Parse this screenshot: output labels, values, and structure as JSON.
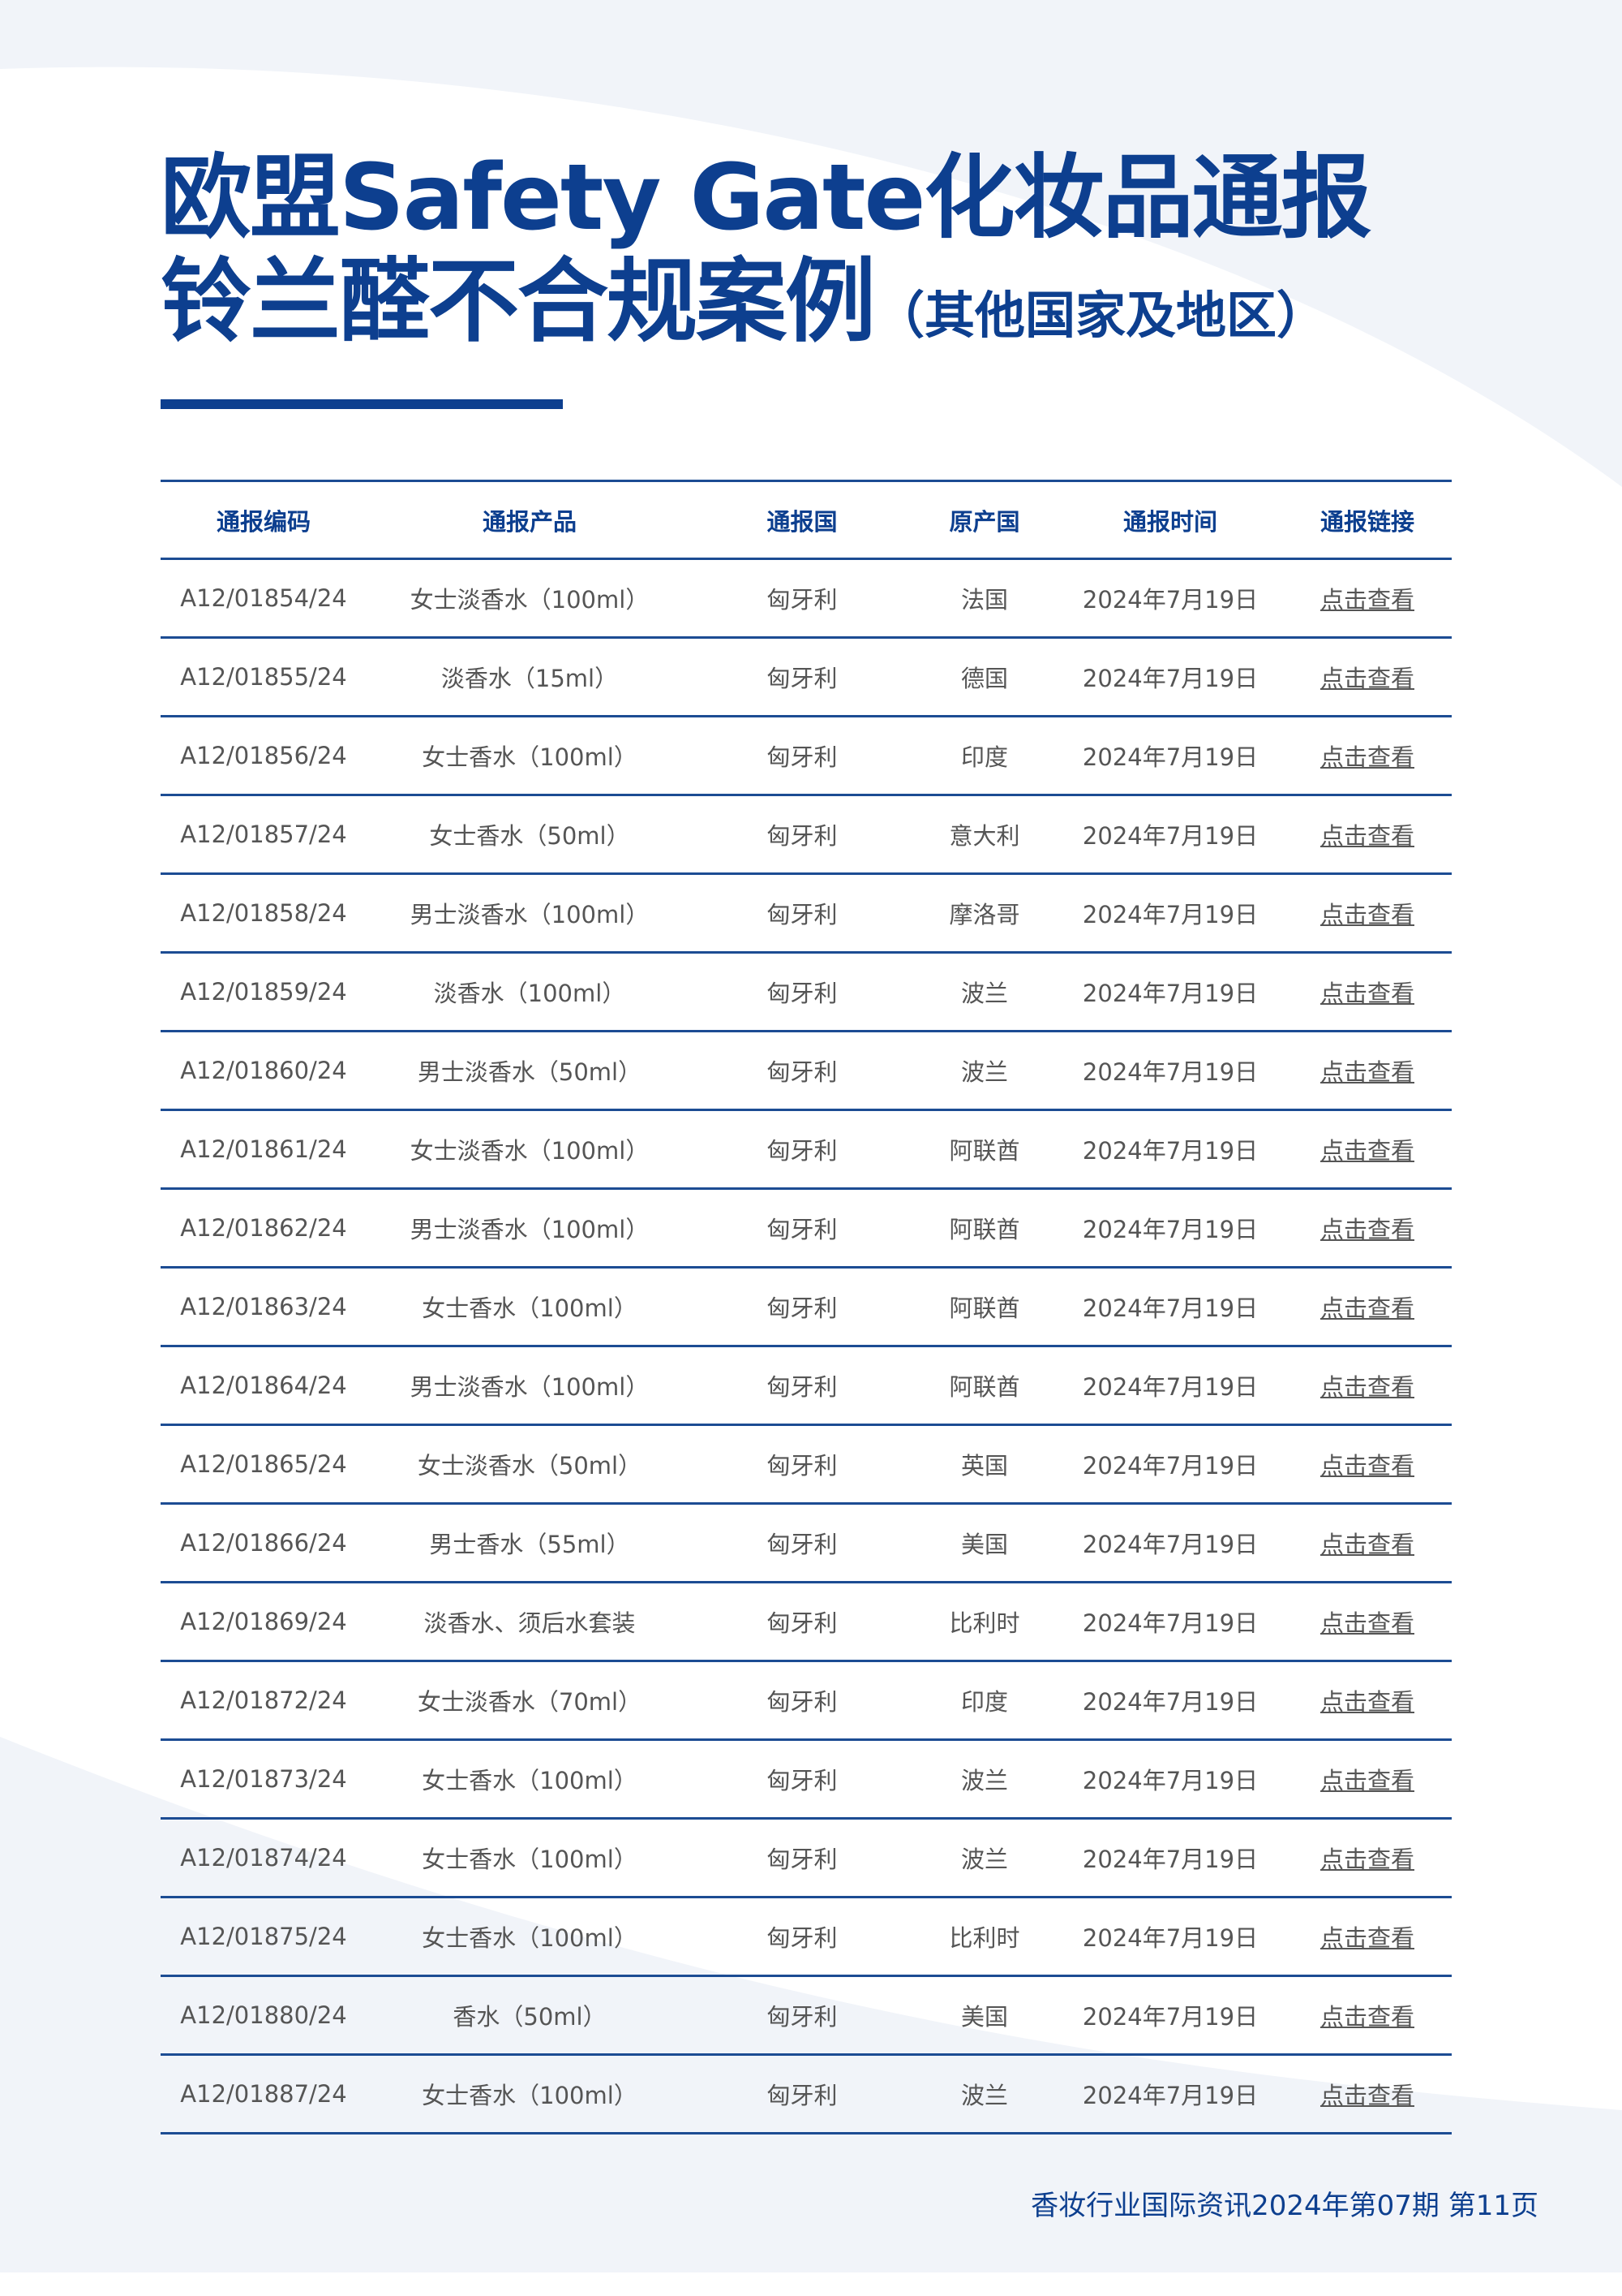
{
  "title": {
    "line1": "欧盟Safety Gate化妆品通报",
    "line2": "铃兰醛不合规案例",
    "line2_suffix": "（其他国家及地区）"
  },
  "table": {
    "headers": [
      "通报编码",
      "通报产品",
      "通报国",
      "原产国",
      "通报时间",
      "通报链接"
    ],
    "rows": [
      [
        "A12/01854/24",
        "女士淡香水（100ml）",
        "匈牙利",
        "法国",
        "2024年7月19日",
        "点击查看"
      ],
      [
        "A12/01855/24",
        "淡香水（15ml）",
        "匈牙利",
        "德国",
        "2024年7月19日",
        "点击查看"
      ],
      [
        "A12/01856/24",
        "女士香水（100ml）",
        "匈牙利",
        "印度",
        "2024年7月19日",
        "点击查看"
      ],
      [
        "A12/01857/24",
        "女士香水（50ml）",
        "匈牙利",
        "意大利",
        "2024年7月19日",
        "点击查看"
      ],
      [
        "A12/01858/24",
        "男士淡香水（100ml）",
        "匈牙利",
        "摩洛哥",
        "2024年7月19日",
        "点击查看"
      ],
      [
        "A12/01859/24",
        "淡香水（100ml）",
        "匈牙利",
        "波兰",
        "2024年7月19日",
        "点击查看"
      ],
      [
        "A12/01860/24",
        "男士淡香水（50ml）",
        "匈牙利",
        "波兰",
        "2024年7月19日",
        "点击查看"
      ],
      [
        "A12/01861/24",
        "女士淡香水（100ml）",
        "匈牙利",
        "阿联酋",
        "2024年7月19日",
        "点击查看"
      ],
      [
        "A12/01862/24",
        "男士淡香水（100ml）",
        "匈牙利",
        "阿联酋",
        "2024年7月19日",
        "点击查看"
      ],
      [
        "A12/01863/24",
        "女士香水（100ml）",
        "匈牙利",
        "阿联酋",
        "2024年7月19日",
        "点击查看"
      ],
      [
        "A12/01864/24",
        "男士淡香水（100ml）",
        "匈牙利",
        "阿联酋",
        "2024年7月19日",
        "点击查看"
      ],
      [
        "A12/01865/24",
        "女士淡香水（50ml）",
        "匈牙利",
        "英国",
        "2024年7月19日",
        "点击查看"
      ],
      [
        "A12/01866/24",
        "男士香水（55ml）",
        "匈牙利",
        "美国",
        "2024年7月19日",
        "点击查看"
      ],
      [
        "A12/01869/24",
        "淡香水、须后水套装",
        "匈牙利",
        "比利时",
        "2024年7月19日",
        "点击查看"
      ],
      [
        "A12/01872/24",
        "女士淡香水（70ml）",
        "匈牙利",
        "印度",
        "2024年7月19日",
        "点击查看"
      ],
      [
        "A12/01873/24",
        "女士香水（100ml）",
        "匈牙利",
        "波兰",
        "2024年7月19日",
        "点击查看"
      ],
      [
        "A12/01874/24",
        "女士香水（100ml）",
        "匈牙利",
        "波兰",
        "2024年7月19日",
        "点击查看"
      ],
      [
        "A12/01875/24",
        "女士香水（100ml）",
        "匈牙利",
        "比利时",
        "2024年7月19日",
        "点击查看"
      ],
      [
        "A12/01880/24",
        "香水（50ml）",
        "匈牙利",
        "美国",
        "2024年7月19日",
        "点击查看"
      ],
      [
        "A12/01887/24",
        "女士香水（100ml）",
        "匈牙利",
        "波兰",
        "2024年7月19日",
        "点击查看"
      ]
    ]
  },
  "footer": "香妆行业国际资讯2024年第07期 第11页",
  "colors": {
    "accent": "#0d3f8f",
    "background": "#f1f4f9",
    "body_text": "#555555"
  }
}
